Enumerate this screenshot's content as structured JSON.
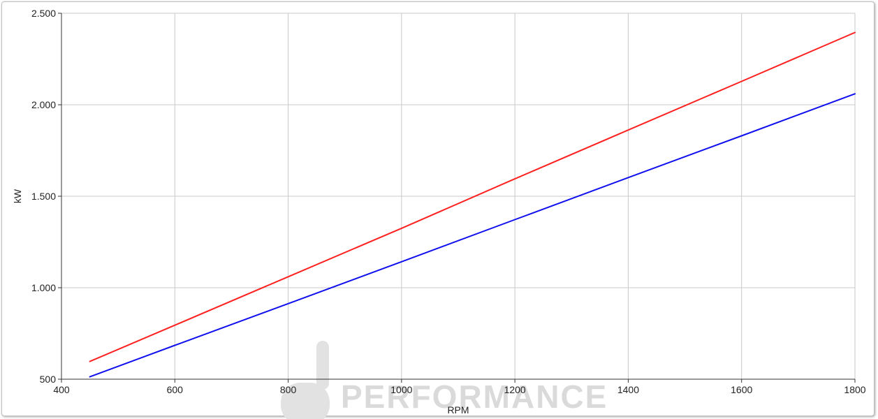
{
  "chart_data": {
    "type": "line",
    "title": "",
    "xlabel": "RPM",
    "ylabel": "kW",
    "xlim": [
      400,
      1800
    ],
    "ylim": [
      500,
      2500
    ],
    "x_ticks": [
      400,
      600,
      800,
      1000,
      1200,
      1400,
      1600,
      1800
    ],
    "x_tick_labels": [
      "400",
      "600",
      "800",
      "1000",
      "1200",
      "1400",
      "1600",
      "1800"
    ],
    "y_ticks": [
      500,
      1000,
      1500,
      2000,
      2500
    ],
    "y_tick_labels": [
      "500",
      "1.000",
      "1.500",
      "2.000",
      "2.500"
    ],
    "grid": true,
    "legend": "none",
    "series": [
      {
        "color": "#ff2020",
        "x": [
          450,
          600,
          800,
          1000,
          1200,
          1400,
          1600,
          1800
        ],
        "y": [
          597,
          795,
          1060,
          1325,
          1595,
          1862,
          2128,
          2395
        ]
      },
      {
        "color": "#1010ee",
        "x": [
          450,
          600,
          800,
          1000,
          1200,
          1400,
          1600,
          1800
        ],
        "y": [
          513,
          685,
          913,
          1142,
          1372,
          1602,
          1830,
          2060
        ]
      }
    ]
  },
  "watermark": {
    "text": "PERFORMANCE",
    "color": "#dadada"
  }
}
